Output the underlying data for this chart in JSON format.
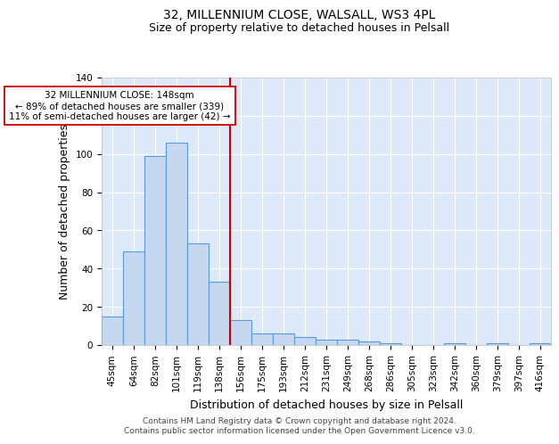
{
  "title": "32, MILLENNIUM CLOSE, WALSALL, WS3 4PL",
  "subtitle": "Size of property relative to detached houses in Pelsall",
  "xlabel": "Distribution of detached houses by size in Pelsall",
  "ylabel": "Number of detached properties",
  "categories": [
    "45sqm",
    "64sqm",
    "82sqm",
    "101sqm",
    "119sqm",
    "138sqm",
    "156sqm",
    "175sqm",
    "193sqm",
    "212sqm",
    "231sqm",
    "249sqm",
    "268sqm",
    "286sqm",
    "305sqm",
    "323sqm",
    "342sqm",
    "360sqm",
    "379sqm",
    "397sqm",
    "416sqm"
  ],
  "values": [
    15,
    49,
    99,
    106,
    53,
    33,
    13,
    6,
    6,
    4,
    3,
    3,
    2,
    1,
    0,
    0,
    1,
    0,
    1,
    0,
    1
  ],
  "bar_color": "#c5d8f0",
  "bar_edge_color": "#5b9bd5",
  "vline_color": "#cc0000",
  "annotation_line1": "32 MILLENNIUM CLOSE: 148sqm",
  "annotation_line2": "← 89% of detached houses are smaller (339)",
  "annotation_line3": "11% of semi-detached houses are larger (42) →",
  "annotation_box_color": "#ffffff",
  "annotation_box_edge_color": "#cc0000",
  "ylim": [
    0,
    140
  ],
  "yticks": [
    0,
    20,
    40,
    60,
    80,
    100,
    120,
    140
  ],
  "footer_line1": "Contains HM Land Registry data © Crown copyright and database right 2024.",
  "footer_line2": "Contains public sector information licensed under the Open Government Licence v3.0.",
  "background_color": "#dce9f8",
  "title_fontsize": 10,
  "subtitle_fontsize": 9,
  "axis_label_fontsize": 9,
  "tick_fontsize": 7.5,
  "footer_fontsize": 6.5,
  "annotation_fontsize": 7.5
}
